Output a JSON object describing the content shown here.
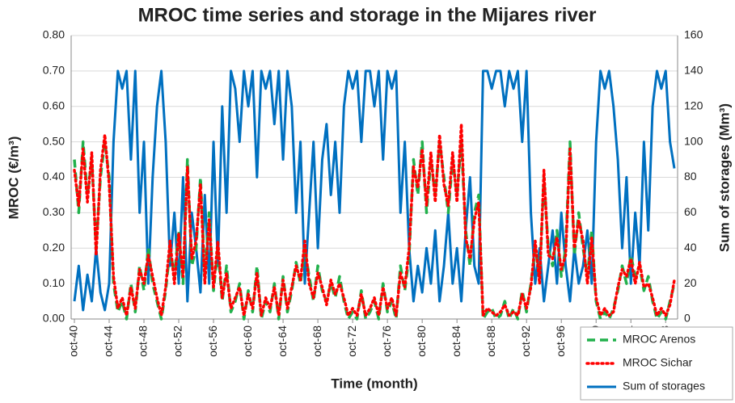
{
  "chart_data": {
    "type": "line",
    "title": "MROC time series and storage in the Mijares river",
    "xlabel": "Time (month)",
    "ylabel": "MROC (€/m³)",
    "y2label": "Sum of storages (Mm³)",
    "categories": [
      "oct-40",
      null,
      null,
      null,
      null,
      null,
      null,
      null,
      "oct-44",
      null,
      null,
      null,
      null,
      null,
      null,
      null,
      "oct-48",
      null,
      null,
      null,
      null,
      null,
      null,
      null,
      "oct-52",
      null,
      null,
      null,
      null,
      null,
      null,
      null,
      "oct-56",
      null,
      null,
      null,
      null,
      null,
      null,
      null,
      "oct-60",
      null,
      null,
      null,
      null,
      null,
      null,
      null,
      "oct-64",
      null,
      null,
      null,
      null,
      null,
      null,
      null,
      "oct-68",
      null,
      null,
      null,
      null,
      null,
      null,
      null,
      "oct-72",
      null,
      null,
      null,
      null,
      null,
      null,
      null,
      "oct-76",
      null,
      null,
      null,
      null,
      null,
      null,
      null,
      "oct-80",
      null,
      null,
      null,
      null,
      null,
      null,
      null,
      "oct-84",
      null,
      null,
      null,
      null,
      null,
      null,
      null,
      "oct-88",
      null,
      null,
      null,
      null,
      null,
      null,
      null,
      "oct-92",
      null,
      null,
      null,
      null,
      null,
      null,
      null,
      "oct-96",
      null,
      null,
      null,
      null,
      null,
      null,
      null,
      "oct-00",
      null,
      null,
      null,
      null,
      null,
      null,
      null,
      "oct-04",
      null,
      null,
      null,
      null,
      null,
      null,
      null,
      "oct-08",
      null,
      null
    ],
    "ylim": [
      0,
      0.8
    ],
    "yticks": [
      {
        "value": 0,
        "label": "0.00"
      },
      {
        "value": 0.1,
        "label": "0.10"
      },
      {
        "value": 0.2,
        "label": "0.20"
      },
      {
        "value": 0.3,
        "label": "0.30"
      },
      {
        "value": 0.4,
        "label": "0.40"
      },
      {
        "value": 0.5,
        "label": "0.50"
      },
      {
        "value": 0.6,
        "label": "0.60"
      },
      {
        "value": 0.7,
        "label": "0.70"
      },
      {
        "value": 0.8,
        "label": "0.80"
      }
    ],
    "y2lim": [
      0,
      160
    ],
    "y2ticks": [
      0,
      20,
      40,
      60,
      80,
      100,
      120,
      140,
      160
    ],
    "grid": true,
    "legend": "lower right",
    "series": [
      {
        "name": "MROC Arenos",
        "color": "#22b14c",
        "style": "dashed",
        "values": [
          0.45,
          0.3,
          0.5,
          0.35,
          0.45,
          0.2,
          0.4,
          0.5,
          0.4,
          0.1,
          0.02,
          0.05,
          0.0,
          0.1,
          0.02,
          0.15,
          0.08,
          0.2,
          0.1,
          0.05,
          0.0,
          0.08,
          0.2,
          0.12,
          0.25,
          0.1,
          0.45,
          0.15,
          0.2,
          0.4,
          0.12,
          0.3,
          0.08,
          0.2,
          0.05,
          0.15,
          0.02,
          0.05,
          0.1,
          0.0,
          0.08,
          0.02,
          0.15,
          0.0,
          0.05,
          0.02,
          0.1,
          0.0,
          0.12,
          0.02,
          0.08,
          0.16,
          0.1,
          0.2,
          0.12,
          0.05,
          0.15,
          0.08,
          0.05,
          0.1,
          0.06,
          0.12,
          0.05,
          0.0,
          0.02,
          0.0,
          0.08,
          0.0,
          0.02,
          0.05,
          0.0,
          0.1,
          0.02,
          0.05,
          0.0,
          0.15,
          0.08,
          0.18,
          0.45,
          0.35,
          0.5,
          0.3,
          0.45,
          0.35,
          0.5,
          0.4,
          0.3,
          0.45,
          0.35,
          0.5,
          0.25,
          0.15,
          0.3,
          0.35,
          0.0,
          0.02,
          0.03,
          0.0,
          0.01,
          0.05,
          0.0,
          0.03,
          0.0,
          0.08,
          0.02,
          0.1,
          0.2,
          0.12,
          0.4,
          0.2,
          0.15,
          0.25,
          0.12,
          0.2,
          0.5,
          0.18,
          0.3,
          0.2,
          0.12,
          0.25,
          0.05,
          0.0,
          0.02,
          0.0,
          0.03,
          0.08,
          0.15,
          0.1,
          0.18,
          0.12,
          0.15,
          0.08,
          0.12,
          0.05,
          0.0,
          0.02,
          0.0,
          0.05,
          0.1
        ]
      },
      {
        "name": "MROC Sichar",
        "color": "#ff0000",
        "style": "dotted",
        "values": [
          0.42,
          0.32,
          0.48,
          0.33,
          0.47,
          0.18,
          0.42,
          0.52,
          0.38,
          0.12,
          0.03,
          0.06,
          0.01,
          0.09,
          0.03,
          0.14,
          0.1,
          0.18,
          0.12,
          0.06,
          0.01,
          0.09,
          0.22,
          0.1,
          0.24,
          0.12,
          0.43,
          0.17,
          0.22,
          0.38,
          0.1,
          0.28,
          0.09,
          0.22,
          0.06,
          0.13,
          0.03,
          0.06,
          0.09,
          0.01,
          0.07,
          0.03,
          0.13,
          0.01,
          0.06,
          0.03,
          0.09,
          0.01,
          0.11,
          0.03,
          0.09,
          0.15,
          0.11,
          0.22,
          0.1,
          0.06,
          0.13,
          0.09,
          0.04,
          0.11,
          0.07,
          0.1,
          0.06,
          0.01,
          0.03,
          0.01,
          0.07,
          0.01,
          0.03,
          0.06,
          0.01,
          0.09,
          0.03,
          0.06,
          0.01,
          0.13,
          0.09,
          0.2,
          0.43,
          0.37,
          0.48,
          0.32,
          0.47,
          0.33,
          0.52,
          0.38,
          0.32,
          0.47,
          0.33,
          0.55,
          0.23,
          0.17,
          0.28,
          0.33,
          0.01,
          0.03,
          0.02,
          0.01,
          0.02,
          0.04,
          0.01,
          0.02,
          0.01,
          0.07,
          0.03,
          0.09,
          0.22,
          0.1,
          0.42,
          0.18,
          0.17,
          0.23,
          0.14,
          0.18,
          0.48,
          0.2,
          0.28,
          0.22,
          0.1,
          0.23,
          0.06,
          0.01,
          0.03,
          0.01,
          0.02,
          0.09,
          0.14,
          0.12,
          0.17,
          0.1,
          0.16,
          0.09,
          0.1,
          0.06,
          0.01,
          0.03,
          0.01,
          0.04,
          0.11
        ]
      },
      {
        "name": "Sum of storages",
        "color": "#0070c0",
        "style": "solid",
        "axis": "y2",
        "values": [
          10,
          30,
          5,
          25,
          10,
          40,
          15,
          5,
          20,
          100,
          140,
          130,
          140,
          90,
          140,
          60,
          100,
          20,
          80,
          120,
          140,
          100,
          30,
          60,
          20,
          80,
          10,
          60,
          40,
          15,
          70,
          20,
          100,
          30,
          120,
          60,
          140,
          130,
          100,
          140,
          120,
          140,
          80,
          140,
          130,
          140,
          110,
          140,
          90,
          140,
          120,
          60,
          100,
          20,
          60,
          100,
          40,
          90,
          110,
          70,
          100,
          60,
          120,
          140,
          130,
          140,
          100,
          140,
          140,
          120,
          140,
          90,
          140,
          130,
          140,
          60,
          100,
          40,
          10,
          30,
          15,
          40,
          20,
          50,
          10,
          30,
          60,
          20,
          40,
          10,
          50,
          80,
          30,
          20,
          140,
          140,
          130,
          140,
          140,
          120,
          140,
          130,
          140,
          100,
          140,
          60,
          20,
          40,
          10,
          30,
          50,
          20,
          60,
          30,
          10,
          40,
          20,
          30,
          50,
          20,
          100,
          140,
          130,
          140,
          120,
          90,
          40,
          80,
          20,
          60,
          30,
          100,
          50,
          120,
          140,
          130,
          140,
          100,
          85
        ]
      }
    ]
  }
}
